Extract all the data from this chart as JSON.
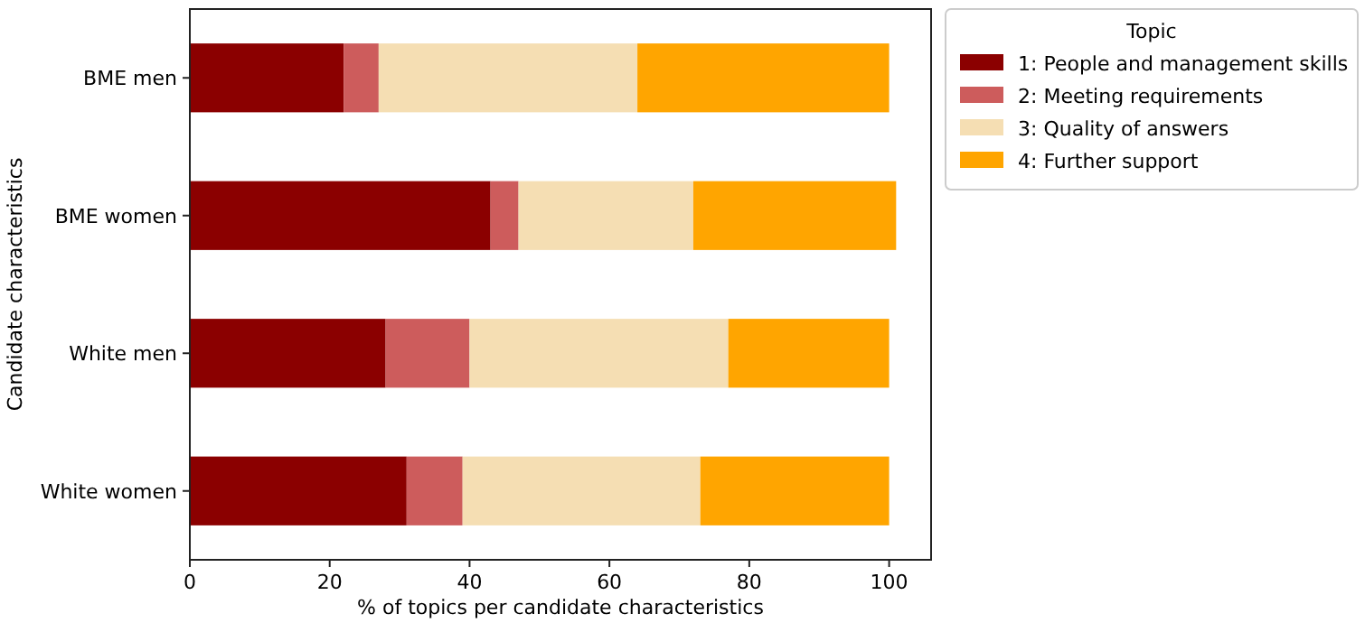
{
  "chart_data": {
    "type": "bar",
    "orientation": "horizontal",
    "stacked": true,
    "categories": [
      "BME men",
      "BME women",
      "White men",
      "White women"
    ],
    "series": [
      {
        "name": "1: People and management skills",
        "color": "#8b0000",
        "values": [
          22,
          43,
          28,
          31
        ]
      },
      {
        "name": "2: Meeting requirements",
        "color": "#cd5c5c",
        "values": [
          5,
          4,
          12,
          8
        ]
      },
      {
        "name": "3: Quality of answers",
        "color": "#f5deb3",
        "values": [
          37,
          25,
          37,
          34
        ]
      },
      {
        "name": "4: Further support",
        "color": "#ffa500",
        "values": [
          36,
          29,
          23,
          27
        ]
      }
    ],
    "xlim": [
      0,
      106
    ],
    "xticks": [
      0,
      20,
      40,
      60,
      80,
      100
    ],
    "xlabel": "% of topics per candidate characteristics",
    "ylabel": "Candidate characteristics",
    "legend_title": "Topic",
    "legend": "top right",
    "grid": false
  }
}
